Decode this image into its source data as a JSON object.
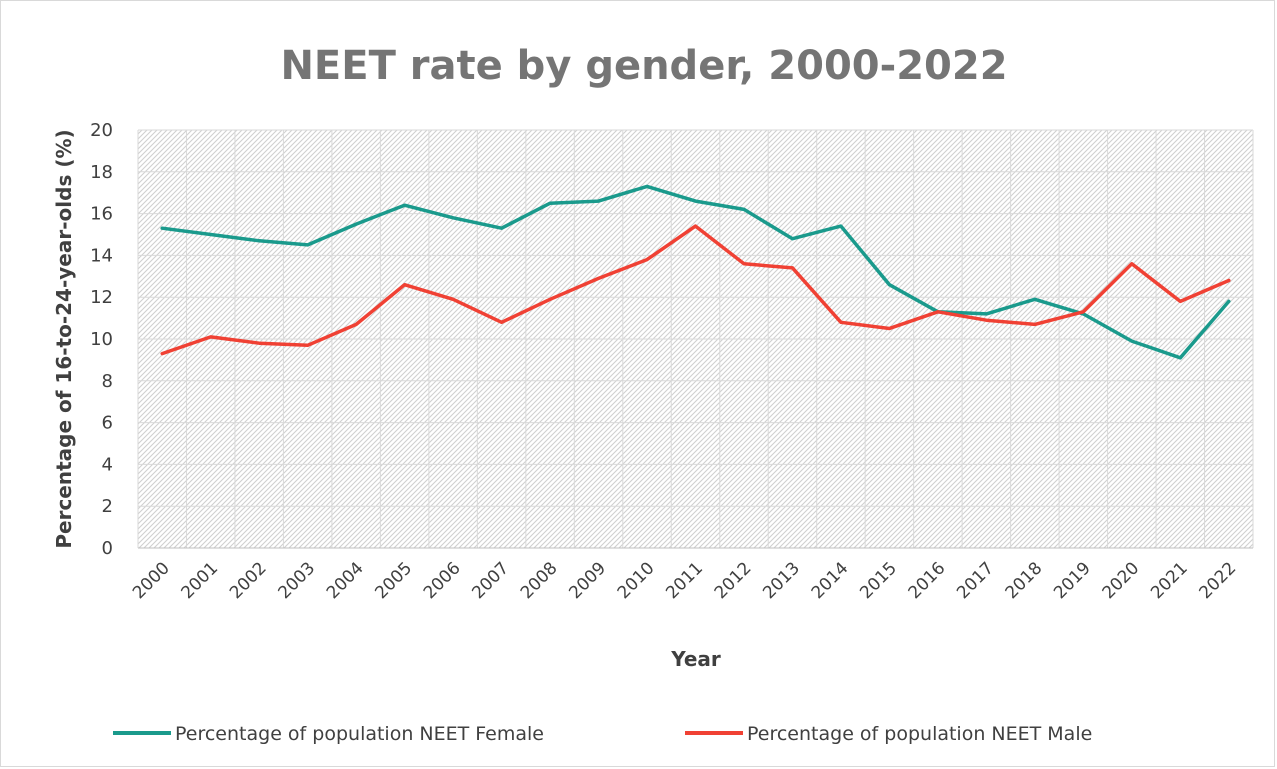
{
  "chart_data": {
    "type": "line",
    "title": "NEET rate by gender, 2000-2022",
    "xlabel": "Year",
    "ylabel": "Percentage of 16-to-24-year-olds (%)",
    "ylim": [
      0,
      20
    ],
    "yticks": [
      "0",
      "2",
      "4",
      "6",
      "8",
      "10",
      "12",
      "14",
      "16",
      "18",
      "20"
    ],
    "categories": [
      "2000",
      "2001",
      "2002",
      "2003",
      "2004",
      "2005",
      "2006",
      "2007",
      "2008",
      "2009",
      "2010",
      "2011",
      "2012",
      "2013",
      "2014",
      "2015",
      "2016",
      "2017",
      "2018",
      "2019",
      "2020",
      "2021",
      "2022"
    ],
    "series": [
      {
        "name": "Percentage of population NEET Female",
        "color": "#1a9a8c",
        "values": [
          15.3,
          15.0,
          14.7,
          14.5,
          15.5,
          16.4,
          15.8,
          15.3,
          16.5,
          16.6,
          17.3,
          16.6,
          16.2,
          14.8,
          15.4,
          12.6,
          11.3,
          11.2,
          11.9,
          11.2,
          9.9,
          9.1,
          11.8
        ]
      },
      {
        "name": "Percentage of population NEET Male",
        "color": "#f04134",
        "values": [
          9.3,
          10.1,
          9.8,
          9.7,
          10.7,
          12.6,
          11.9,
          10.8,
          11.9,
          12.9,
          13.8,
          15.4,
          13.6,
          13.4,
          10.8,
          10.5,
          11.3,
          10.9,
          10.7,
          11.3,
          13.6,
          11.8,
          12.8
        ]
      }
    ],
    "grid": true,
    "plot_background": "diagonal-hatch",
    "legend_position": "bottom"
  }
}
